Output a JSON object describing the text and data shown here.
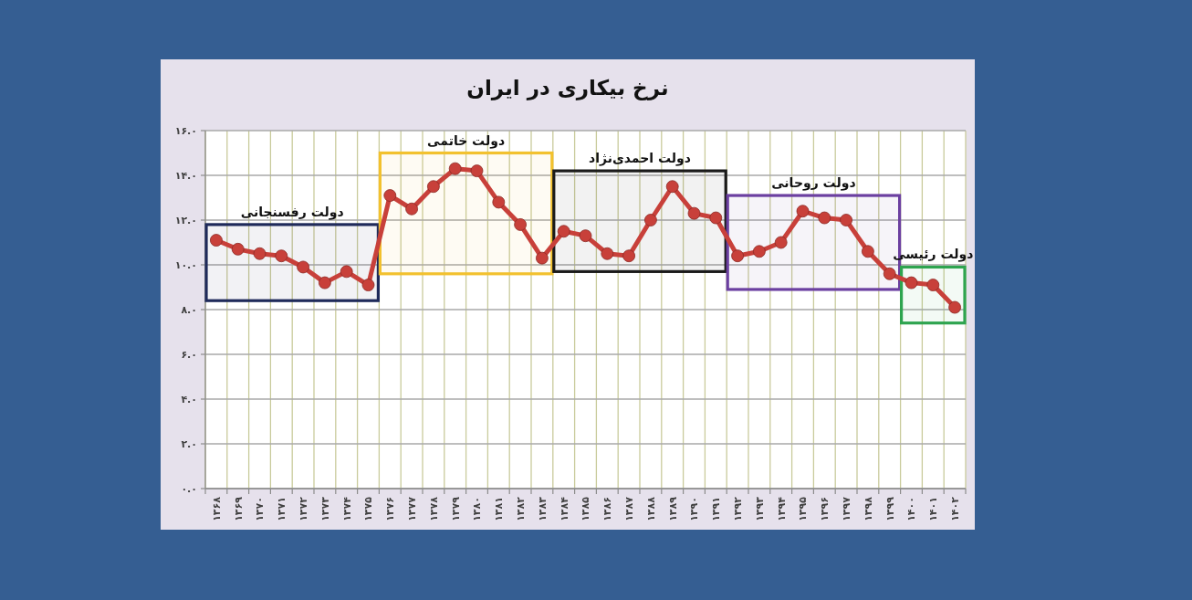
{
  "chart_data": {
    "type": "line",
    "title": "نرخ بیکاری در ایران",
    "categories": [
      "۱۳۶۸",
      "۱۳۶۹",
      "۱۳۷۰",
      "۱۳۷۱",
      "۱۳۷۲",
      "۱۳۷۳",
      "۱۳۷۴",
      "۱۳۷۵",
      "۱۳۷۶",
      "۱۳۷۷",
      "۱۳۷۸",
      "۱۳۷۹",
      "۱۳۸۰",
      "۱۳۸۱",
      "۱۳۸۲",
      "۱۳۸۳",
      "۱۳۸۴",
      "۱۳۸۵",
      "۱۳۸۶",
      "۱۳۸۷",
      "۱۳۸۸",
      "۱۳۸۹",
      "۱۳۹۰",
      "۱۳۹۱",
      "۱۳۹۲",
      "۱۳۹۳",
      "۱۳۹۴",
      "۱۳۹۵",
      "۱۳۹۶",
      "۱۳۹۷",
      "۱۳۹۸",
      "۱۳۹۹",
      "۱۴۰۰",
      "۱۴۰۱",
      "۱۴۰۲"
    ],
    "values": [
      11.1,
      10.7,
      10.5,
      10.4,
      9.9,
      9.2,
      9.7,
      9.1,
      13.1,
      12.5,
      13.5,
      14.3,
      14.2,
      12.8,
      11.8,
      10.3,
      11.5,
      11.3,
      10.5,
      10.4,
      12.0,
      13.5,
      12.3,
      12.1,
      10.4,
      10.6,
      11.0,
      12.4,
      12.1,
      12.0,
      10.6,
      9.6,
      9.2,
      9.1,
      8.1
    ],
    "color": "#c8403a",
    "marker": "circle",
    "line_style": "solid",
    "ylim": [
      0,
      16
    ],
    "yticks": [
      {
        "value": 0,
        "label": "۰.۰"
      },
      {
        "value": 2,
        "label": "۲.۰"
      },
      {
        "value": 4,
        "label": "۴.۰"
      },
      {
        "value": 6,
        "label": "۶.۰"
      },
      {
        "value": 8,
        "label": "۸.۰"
      },
      {
        "value": 10,
        "label": "۱۰.۰"
      },
      {
        "value": 12,
        "label": "۱۲.۰"
      },
      {
        "value": 14,
        "label": "۱۴.۰"
      },
      {
        "value": 16,
        "label": "۱۶.۰"
      }
    ],
    "grid": true,
    "bands": [
      {
        "axis": "x",
        "from": "۱۳۶۸",
        "to": "۱۳۷۵",
        "label": "دولت رفسنجانی",
        "color": "#1f2a5a"
      },
      {
        "axis": "x",
        "from": "۱۳۷۶",
        "to": "۱۳۸۳",
        "label": "دولت خاتمی",
        "color": "#f2c12e"
      },
      {
        "axis": "x",
        "from": "۱۳۸۴",
        "to": "۱۳۹۱",
        "label": "دولت احمدی‌نژاد",
        "color": "#1a1a1a"
      },
      {
        "axis": "x",
        "from": "۱۳۹۲",
        "to": "۱۳۹۹",
        "label": "دولت روحانی",
        "color": "#6b3fa0"
      },
      {
        "axis": "x",
        "from": "۱۴۰۰",
        "to": "۱۴۰۲",
        "label": "دولت رئیسی",
        "color": "#2ea44f"
      }
    ]
  }
}
